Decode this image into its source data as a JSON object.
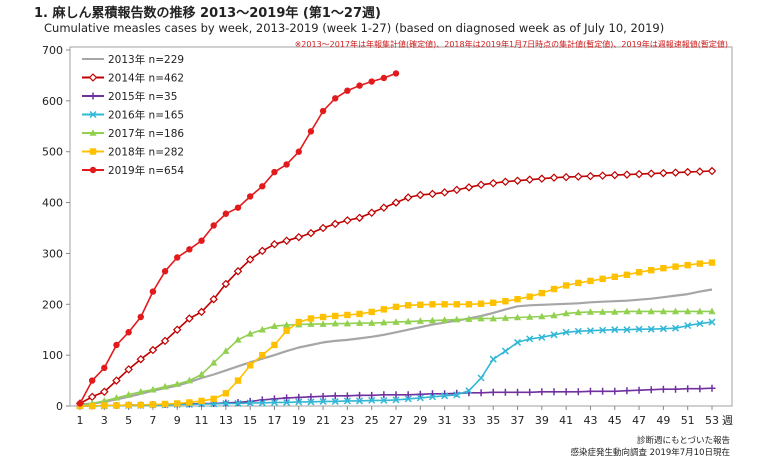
{
  "heading": "1. 麻しん累積報告数の推移 2013～2019年 (第1～27週)",
  "subheading": "Cumulative measles cases by week, 2013-2019 (week 1-27) (based on diagnosed week as of July 10, 2019)",
  "chart_data": {
    "type": "line",
    "title": "1. 麻しん累積報告数の推移 2013～2019年 (第1～27週)",
    "subtitle": "Cumulative measles cases by week, 2013-2019 (week 1-27) (based on diagnosed week as of July 10, 2019)",
    "note": "※2013～2017年は年報集計値(確定値)、2018年は2019年1月7日時点の集計値(暫定値)、2019年は週報速報値(暫定値)",
    "xunit": "週",
    "x_ticks": [
      1,
      3,
      5,
      7,
      9,
      11,
      13,
      15,
      17,
      19,
      21,
      23,
      25,
      27,
      29,
      31,
      33,
      35,
      37,
      39,
      41,
      43,
      45,
      47,
      49,
      51,
      53
    ],
    "xlim": [
      1,
      53
    ],
    "ylim": [
      0,
      700
    ],
    "y_ticks": [
      0,
      100,
      200,
      300,
      400,
      500,
      600,
      700
    ],
    "grid": false,
    "legend_position": "top-left",
    "source": [
      "診断週にもとづいた報告",
      "感染症発生動向調査 2019年7月10日現在"
    ],
    "series": [
      {
        "name": "2013年 n=229",
        "color": "#a6a6a6",
        "marker": "none",
        "values": [
          3,
          5,
          8,
          13,
          18,
          24,
          30,
          35,
          40,
          47,
          55,
          62,
          70,
          78,
          86,
          93,
          100,
          108,
          115,
          120,
          125,
          128,
          130,
          133,
          136,
          140,
          145,
          150,
          155,
          160,
          164,
          168,
          172,
          177,
          183,
          190,
          196,
          198,
          199,
          200,
          201,
          202,
          204,
          205,
          206,
          207,
          209,
          211,
          214,
          217,
          220,
          225,
          229
        ]
      },
      {
        "name": "2014年 n=462",
        "color": "#c00000",
        "marker": "diamond",
        "values": [
          5,
          18,
          28,
          50,
          72,
          92,
          110,
          128,
          150,
          172,
          185,
          210,
          240,
          265,
          288,
          305,
          318,
          325,
          332,
          340,
          350,
          358,
          365,
          370,
          380,
          390,
          400,
          410,
          415,
          417,
          420,
          425,
          430,
          435,
          438,
          441,
          443,
          445,
          447,
          449,
          450,
          451,
          452,
          453,
          454,
          455,
          456,
          457,
          458,
          459,
          460,
          461,
          462
        ]
      },
      {
        "name": "2015年 n=35",
        "color": "#7030a0",
        "marker": "plus",
        "values": [
          0,
          0,
          1,
          1,
          2,
          2,
          3,
          3,
          4,
          4,
          5,
          5,
          6,
          7,
          9,
          12,
          14,
          16,
          17,
          18,
          19,
          20,
          20,
          21,
          21,
          22,
          22,
          22,
          23,
          24,
          24,
          25,
          26,
          26,
          27,
          27,
          27,
          27,
          28,
          28,
          28,
          28,
          29,
          29,
          29,
          30,
          31,
          32,
          33,
          33,
          34,
          34,
          35
        ]
      },
      {
        "name": "2016年 n=165",
        "color": "#31b7d6",
        "marker": "x",
        "values": [
          0,
          0,
          0,
          1,
          1,
          1,
          2,
          2,
          3,
          3,
          4,
          4,
          5,
          5,
          6,
          6,
          7,
          7,
          8,
          8,
          9,
          9,
          10,
          10,
          11,
          11,
          12,
          14,
          16,
          18,
          20,
          22,
          30,
          55,
          92,
          108,
          125,
          132,
          135,
          140,
          145,
          147,
          148,
          149,
          150,
          150,
          151,
          151,
          152,
          153,
          158,
          162,
          165
        ]
      },
      {
        "name": "2017年 n=186",
        "color": "#92d050",
        "marker": "triangle",
        "values": [
          1,
          5,
          10,
          16,
          22,
          28,
          32,
          38,
          43,
          50,
          62,
          85,
          108,
          130,
          142,
          150,
          157,
          159,
          160,
          161,
          161,
          162,
          162,
          163,
          163,
          164,
          165,
          166,
          167,
          168,
          169,
          170,
          171,
          172,
          172,
          173,
          174,
          175,
          176,
          178,
          182,
          184,
          185,
          185,
          185,
          186,
          186,
          186,
          186,
          186,
          186,
          186,
          186
        ]
      },
      {
        "name": "2018年 n=282",
        "color": "#ffc000",
        "marker": "square",
        "values": [
          0,
          0,
          1,
          1,
          2,
          2,
          3,
          4,
          5,
          7,
          10,
          14,
          25,
          50,
          80,
          100,
          120,
          148,
          165,
          172,
          175,
          177,
          179,
          181,
          185,
          190,
          195,
          198,
          199,
          200,
          200,
          200,
          200,
          201,
          203,
          206,
          210,
          215,
          222,
          230,
          237,
          242,
          246,
          250,
          254,
          258,
          263,
          267,
          271,
          274,
          277,
          280,
          282
        ]
      },
      {
        "name": "2019年 n=654",
        "color": "#e31a1c",
        "marker": "circle",
        "values": [
          5,
          50,
          75,
          120,
          145,
          175,
          225,
          265,
          292,
          308,
          325,
          355,
          378,
          390,
          412,
          432,
          460,
          475,
          500,
          540,
          580,
          605,
          620,
          630,
          638,
          645,
          654
        ]
      }
    ]
  }
}
